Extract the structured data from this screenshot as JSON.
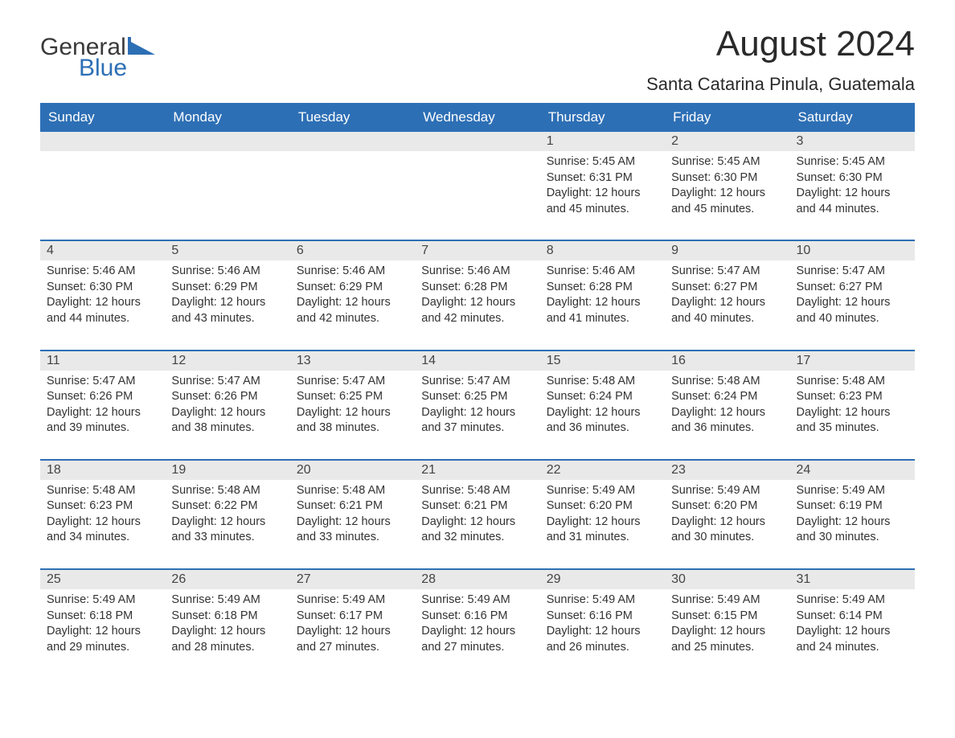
{
  "logo": {
    "text1": "General",
    "text2": "Blue",
    "accent_color": "#2d6fb5"
  },
  "title": "August 2024",
  "location": "Santa Catarina Pinula, Guatemala",
  "day_headers": [
    "Sunday",
    "Monday",
    "Tuesday",
    "Wednesday",
    "Thursday",
    "Friday",
    "Saturday"
  ],
  "header_bg": "#2d6fb5",
  "header_fg": "#ffffff",
  "daynum_bg": "#e9e9e9",
  "row_border_color": "#2d6fb5",
  "text_color": "#333333",
  "weeks": [
    [
      null,
      null,
      null,
      null,
      {
        "n": "1",
        "sunrise": "Sunrise: 5:45 AM",
        "sunset": "Sunset: 6:31 PM",
        "daylight1": "Daylight: 12 hours",
        "daylight2": "and 45 minutes."
      },
      {
        "n": "2",
        "sunrise": "Sunrise: 5:45 AM",
        "sunset": "Sunset: 6:30 PM",
        "daylight1": "Daylight: 12 hours",
        "daylight2": "and 45 minutes."
      },
      {
        "n": "3",
        "sunrise": "Sunrise: 5:45 AM",
        "sunset": "Sunset: 6:30 PM",
        "daylight1": "Daylight: 12 hours",
        "daylight2": "and 44 minutes."
      }
    ],
    [
      {
        "n": "4",
        "sunrise": "Sunrise: 5:46 AM",
        "sunset": "Sunset: 6:30 PM",
        "daylight1": "Daylight: 12 hours",
        "daylight2": "and 44 minutes."
      },
      {
        "n": "5",
        "sunrise": "Sunrise: 5:46 AM",
        "sunset": "Sunset: 6:29 PM",
        "daylight1": "Daylight: 12 hours",
        "daylight2": "and 43 minutes."
      },
      {
        "n": "6",
        "sunrise": "Sunrise: 5:46 AM",
        "sunset": "Sunset: 6:29 PM",
        "daylight1": "Daylight: 12 hours",
        "daylight2": "and 42 minutes."
      },
      {
        "n": "7",
        "sunrise": "Sunrise: 5:46 AM",
        "sunset": "Sunset: 6:28 PM",
        "daylight1": "Daylight: 12 hours",
        "daylight2": "and 42 minutes."
      },
      {
        "n": "8",
        "sunrise": "Sunrise: 5:46 AM",
        "sunset": "Sunset: 6:28 PM",
        "daylight1": "Daylight: 12 hours",
        "daylight2": "and 41 minutes."
      },
      {
        "n": "9",
        "sunrise": "Sunrise: 5:47 AM",
        "sunset": "Sunset: 6:27 PM",
        "daylight1": "Daylight: 12 hours",
        "daylight2": "and 40 minutes."
      },
      {
        "n": "10",
        "sunrise": "Sunrise: 5:47 AM",
        "sunset": "Sunset: 6:27 PM",
        "daylight1": "Daylight: 12 hours",
        "daylight2": "and 40 minutes."
      }
    ],
    [
      {
        "n": "11",
        "sunrise": "Sunrise: 5:47 AM",
        "sunset": "Sunset: 6:26 PM",
        "daylight1": "Daylight: 12 hours",
        "daylight2": "and 39 minutes."
      },
      {
        "n": "12",
        "sunrise": "Sunrise: 5:47 AM",
        "sunset": "Sunset: 6:26 PM",
        "daylight1": "Daylight: 12 hours",
        "daylight2": "and 38 minutes."
      },
      {
        "n": "13",
        "sunrise": "Sunrise: 5:47 AM",
        "sunset": "Sunset: 6:25 PM",
        "daylight1": "Daylight: 12 hours",
        "daylight2": "and 38 minutes."
      },
      {
        "n": "14",
        "sunrise": "Sunrise: 5:47 AM",
        "sunset": "Sunset: 6:25 PM",
        "daylight1": "Daylight: 12 hours",
        "daylight2": "and 37 minutes."
      },
      {
        "n": "15",
        "sunrise": "Sunrise: 5:48 AM",
        "sunset": "Sunset: 6:24 PM",
        "daylight1": "Daylight: 12 hours",
        "daylight2": "and 36 minutes."
      },
      {
        "n": "16",
        "sunrise": "Sunrise: 5:48 AM",
        "sunset": "Sunset: 6:24 PM",
        "daylight1": "Daylight: 12 hours",
        "daylight2": "and 36 minutes."
      },
      {
        "n": "17",
        "sunrise": "Sunrise: 5:48 AM",
        "sunset": "Sunset: 6:23 PM",
        "daylight1": "Daylight: 12 hours",
        "daylight2": "and 35 minutes."
      }
    ],
    [
      {
        "n": "18",
        "sunrise": "Sunrise: 5:48 AM",
        "sunset": "Sunset: 6:23 PM",
        "daylight1": "Daylight: 12 hours",
        "daylight2": "and 34 minutes."
      },
      {
        "n": "19",
        "sunrise": "Sunrise: 5:48 AM",
        "sunset": "Sunset: 6:22 PM",
        "daylight1": "Daylight: 12 hours",
        "daylight2": "and 33 minutes."
      },
      {
        "n": "20",
        "sunrise": "Sunrise: 5:48 AM",
        "sunset": "Sunset: 6:21 PM",
        "daylight1": "Daylight: 12 hours",
        "daylight2": "and 33 minutes."
      },
      {
        "n": "21",
        "sunrise": "Sunrise: 5:48 AM",
        "sunset": "Sunset: 6:21 PM",
        "daylight1": "Daylight: 12 hours",
        "daylight2": "and 32 minutes."
      },
      {
        "n": "22",
        "sunrise": "Sunrise: 5:49 AM",
        "sunset": "Sunset: 6:20 PM",
        "daylight1": "Daylight: 12 hours",
        "daylight2": "and 31 minutes."
      },
      {
        "n": "23",
        "sunrise": "Sunrise: 5:49 AM",
        "sunset": "Sunset: 6:20 PM",
        "daylight1": "Daylight: 12 hours",
        "daylight2": "and 30 minutes."
      },
      {
        "n": "24",
        "sunrise": "Sunrise: 5:49 AM",
        "sunset": "Sunset: 6:19 PM",
        "daylight1": "Daylight: 12 hours",
        "daylight2": "and 30 minutes."
      }
    ],
    [
      {
        "n": "25",
        "sunrise": "Sunrise: 5:49 AM",
        "sunset": "Sunset: 6:18 PM",
        "daylight1": "Daylight: 12 hours",
        "daylight2": "and 29 minutes."
      },
      {
        "n": "26",
        "sunrise": "Sunrise: 5:49 AM",
        "sunset": "Sunset: 6:18 PM",
        "daylight1": "Daylight: 12 hours",
        "daylight2": "and 28 minutes."
      },
      {
        "n": "27",
        "sunrise": "Sunrise: 5:49 AM",
        "sunset": "Sunset: 6:17 PM",
        "daylight1": "Daylight: 12 hours",
        "daylight2": "and 27 minutes."
      },
      {
        "n": "28",
        "sunrise": "Sunrise: 5:49 AM",
        "sunset": "Sunset: 6:16 PM",
        "daylight1": "Daylight: 12 hours",
        "daylight2": "and 27 minutes."
      },
      {
        "n": "29",
        "sunrise": "Sunrise: 5:49 AM",
        "sunset": "Sunset: 6:16 PM",
        "daylight1": "Daylight: 12 hours",
        "daylight2": "and 26 minutes."
      },
      {
        "n": "30",
        "sunrise": "Sunrise: 5:49 AM",
        "sunset": "Sunset: 6:15 PM",
        "daylight1": "Daylight: 12 hours",
        "daylight2": "and 25 minutes."
      },
      {
        "n": "31",
        "sunrise": "Sunrise: 5:49 AM",
        "sunset": "Sunset: 6:14 PM",
        "daylight1": "Daylight: 12 hours",
        "daylight2": "and 24 minutes."
      }
    ]
  ]
}
